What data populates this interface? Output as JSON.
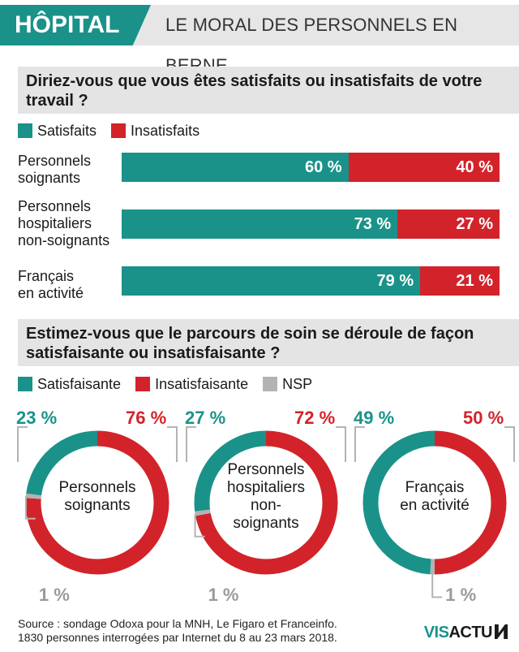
{
  "colors": {
    "teal": "#1a9289",
    "red": "#d2232a",
    "grey": "#b3b3b3",
    "band": "#e4e4e4"
  },
  "header": {
    "tag": "HÔPITAL",
    "subtitle": "LE MORAL DES PERSONNELS EN BERNE"
  },
  "section1": {
    "question": "Diriez-vous que vous êtes satisfaits ou insatisfaits de votre travail ?",
    "legend": {
      "satisfied": "Satisfaits",
      "unsatisfied": "Insatisfaits"
    }
  },
  "section2": {
    "question": "Estimez-vous que le parcours de soin se déroule de façon satisfaisante ou insatisfaisante ?",
    "legend": {
      "satisfied": "Satisfaisante",
      "unsatisfied": "Insatisfaisante",
      "nsp": "NSP"
    }
  },
  "chart_data": [
    {
      "type": "bar",
      "orientation": "horizontal-stacked",
      "title": "Diriez-vous que vous êtes satisfaits ou insatisfaits de votre travail ?",
      "categories": [
        "Personnels soignants",
        "Personnels hospitaliers non-soignants",
        "Français en activité"
      ],
      "series": [
        {
          "name": "Satisfaits",
          "values": [
            60,
            73,
            79
          ],
          "labels": [
            "60 %",
            "73 %",
            "79 %"
          ]
        },
        {
          "name": "Insatisfaits",
          "values": [
            40,
            27,
            21
          ],
          "labels": [
            "40 %",
            "27 %",
            "21 %"
          ]
        }
      ]
    },
    {
      "type": "pie",
      "style": "donut",
      "title": "Estimez-vous que le parcours de soin se déroule de façon satisfaisante ou insatisfaisante ?",
      "donuts": [
        {
          "center_label": [
            "Personnels",
            "soignants"
          ],
          "satisfaisante": 23,
          "insatisfaisante": 76,
          "nsp": 1,
          "labels": {
            "satisfaisante": "23 %",
            "insatisfaisante": "76 %",
            "nsp": "1 %"
          }
        },
        {
          "center_label": [
            "Personnels",
            "hospitaliers",
            "non-",
            "soignants"
          ],
          "satisfaisante": 27,
          "insatisfaisante": 72,
          "nsp": 1,
          "labels": {
            "satisfaisante": "27 %",
            "insatisfaisante": "72 %",
            "nsp": "1 %"
          }
        },
        {
          "center_label": [
            "Français",
            "en activité"
          ],
          "satisfaisante": 49,
          "insatisfaisante": 50,
          "nsp": 1,
          "labels": {
            "satisfaisante": "49 %",
            "insatisfaisante": "50 %",
            "nsp": "1 %"
          }
        }
      ]
    }
  ],
  "source": {
    "line1": "Source : sondage Odoxa pour la MNH, Le Figaro et Franceinfo.",
    "line2": "1830 personnes interrogées par Internet du 8 au 23 mars 2018."
  },
  "logo": {
    "part1": "VIS",
    "part2": "ACTU"
  }
}
